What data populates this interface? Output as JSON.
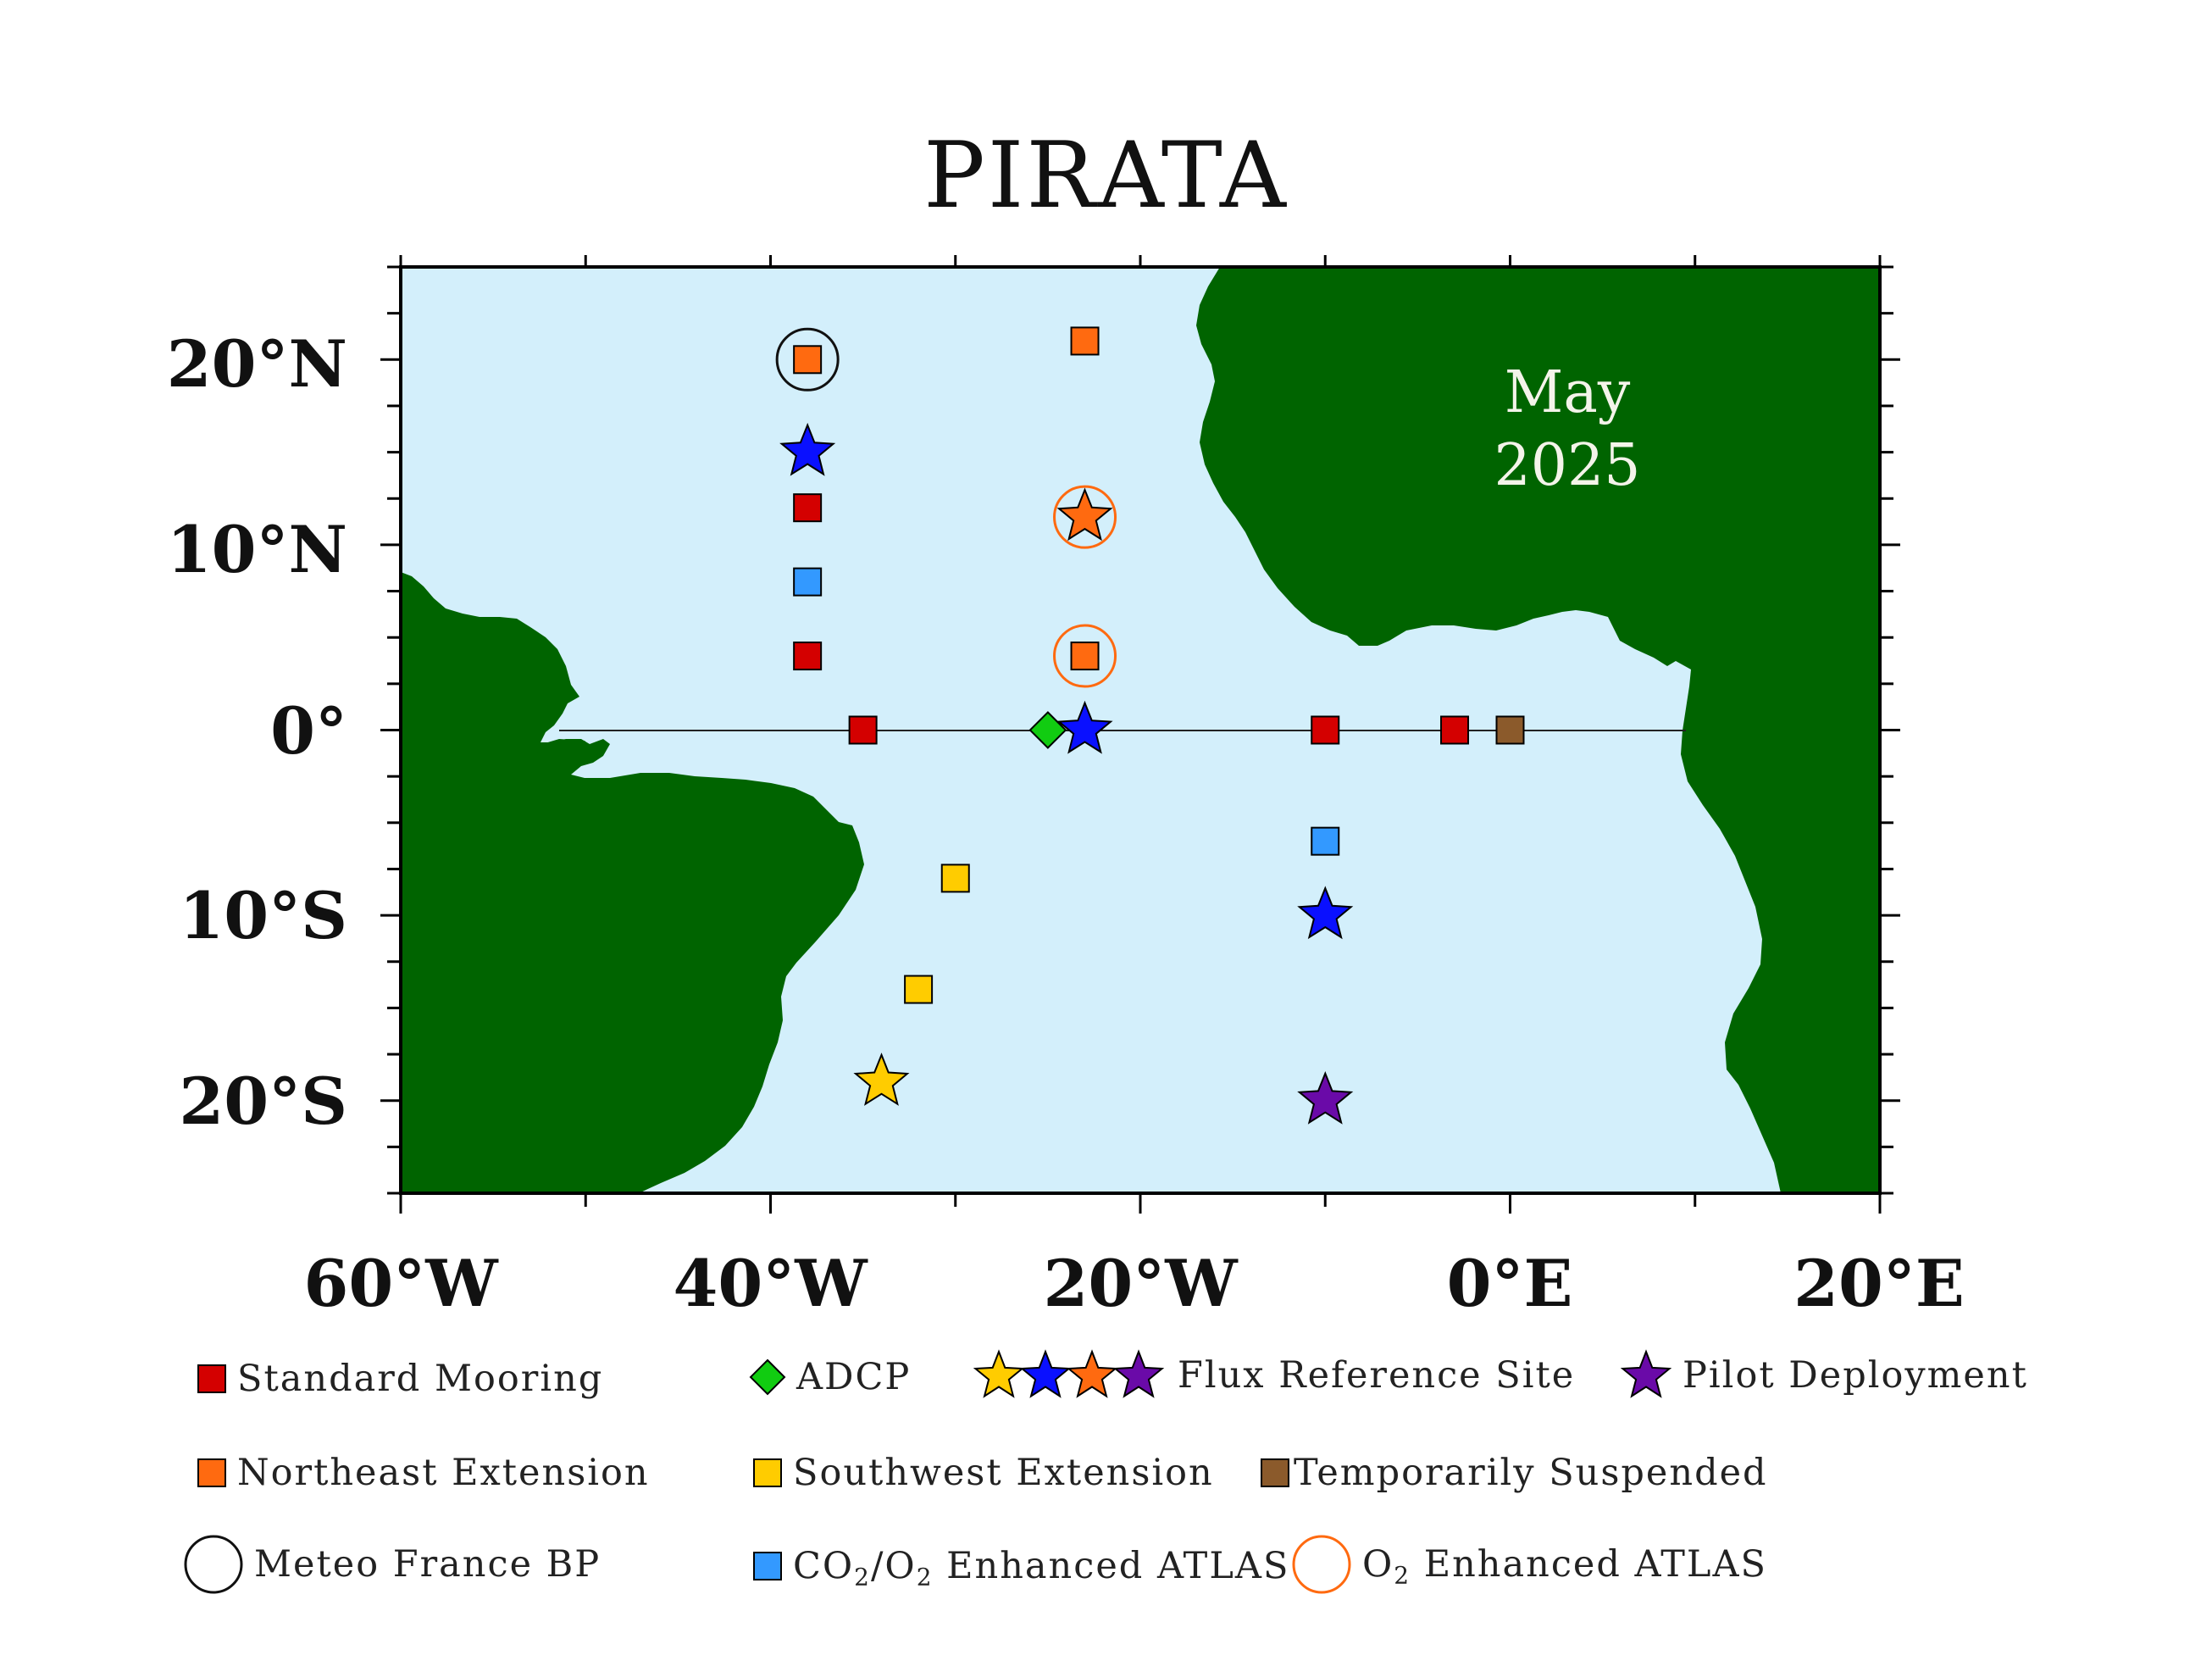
{
  "title": "PIRATA",
  "date_line1": "May",
  "date_line2": "2025",
  "colors": {
    "ocean": "#d3effb",
    "land": "#006400",
    "standard": "#d40000",
    "northeast": "#ff6a10",
    "southwest": "#ffcc00",
    "suspended": "#8b5a2b",
    "co2": "#3399ff",
    "adcp": "#11cc11",
    "star_blue": "#0a10ff",
    "star_purple": "#6a0aa8",
    "star_yellow": "#ffcc00",
    "star_orange": "#ff6a10",
    "o2_ring": "#ff6a10",
    "meteo_ring": "#111111"
  },
  "axes": {
    "x_ticks": [
      {
        "value": -60,
        "label": "60°W"
      },
      {
        "value": -40,
        "label": "40°W"
      },
      {
        "value": -20,
        "label": "20°W"
      },
      {
        "value": 0,
        "label": "0°E"
      },
      {
        "value": 20,
        "label": "20°E"
      }
    ],
    "y_ticks": [
      {
        "value": 20,
        "label": "20°N"
      },
      {
        "value": 10,
        "label": "10°N"
      },
      {
        "value": 0,
        "label": "0°"
      },
      {
        "value": -10,
        "label": "10°S"
      },
      {
        "value": -20,
        "label": "20°S"
      }
    ],
    "lon_range": [
      -60,
      20
    ],
    "lat_range": [
      -25,
      25
    ]
  },
  "moorings": [
    {
      "type": "northeast",
      "shape": "square",
      "lon": -38,
      "lat": 20,
      "ring": "meteo"
    },
    {
      "type": "northeast",
      "shape": "square",
      "lon": -23,
      "lat": 21
    },
    {
      "type": "flux_blue",
      "shape": "star",
      "lon": -38,
      "lat": 15
    },
    {
      "type": "flux_orange",
      "shape": "star",
      "lon": -23,
      "lat": 11.5,
      "ring": "o2"
    },
    {
      "type": "standard",
      "shape": "square",
      "lon": -38,
      "lat": 12
    },
    {
      "type": "co2",
      "shape": "square",
      "lon": -38,
      "lat": 8
    },
    {
      "type": "standard",
      "shape": "square",
      "lon": -38,
      "lat": 4
    },
    {
      "type": "northeast",
      "shape": "square",
      "lon": -23,
      "lat": 4,
      "ring": "o2"
    },
    {
      "type": "standard",
      "shape": "square",
      "lon": -35,
      "lat": 0
    },
    {
      "type": "adcp",
      "shape": "diamond",
      "lon": -25,
      "lat": 0
    },
    {
      "type": "flux_blue",
      "shape": "star",
      "lon": -23,
      "lat": 0
    },
    {
      "type": "standard",
      "shape": "square",
      "lon": -10,
      "lat": 0
    },
    {
      "type": "standard",
      "shape": "square",
      "lon": -3,
      "lat": 0
    },
    {
      "type": "suspended",
      "shape": "square",
      "lon": 0,
      "lat": 0
    },
    {
      "type": "co2",
      "shape": "square",
      "lon": -10,
      "lat": -6
    },
    {
      "type": "southwest",
      "shape": "square",
      "lon": -30,
      "lat": -8
    },
    {
      "type": "flux_blue",
      "shape": "star",
      "lon": -10,
      "lat": -10
    },
    {
      "type": "southwest",
      "shape": "square",
      "lon": -32,
      "lat": -14
    },
    {
      "type": "flux_yellow",
      "shape": "star",
      "lon": -34,
      "lat": -19
    },
    {
      "type": "pilot",
      "shape": "star",
      "lon": -10,
      "lat": -20
    }
  ],
  "legend": {
    "standard": "Standard Mooring",
    "adcp": "ADCP",
    "flux": "Flux Reference Site",
    "pilot": "Pilot Deployment",
    "northeast": "Northeast Extension",
    "southwest": "Southwest Extension",
    "suspended": "Temporarily Suspended",
    "meteo": "Meteo France BP",
    "co2_a": "CO",
    "co2_s1": "2",
    "co2_b": "/O",
    "co2_s2": "2",
    "co2_c": " Enhanced ATLAS",
    "o2_a": "O",
    "o2_s": "2",
    "o2_b": " Enhanced ATLAS"
  }
}
